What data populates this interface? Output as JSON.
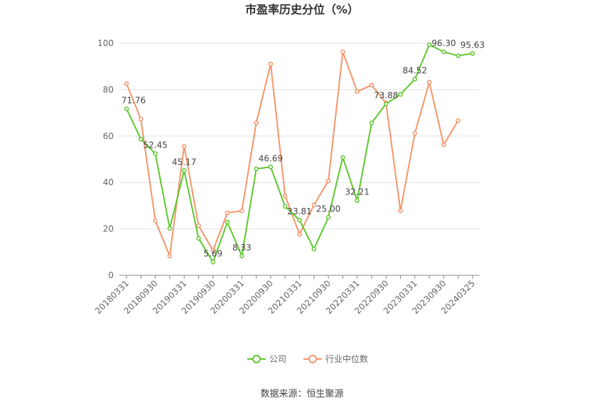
{
  "chart_data": {
    "type": "line",
    "title": "市盈率历史分位（%）",
    "categories": [
      "20180331",
      null,
      "20180930",
      null,
      "20190331",
      null,
      "20190930",
      null,
      "20200331",
      null,
      "20200930",
      null,
      "20210331",
      null,
      "20210930",
      null,
      "20220331",
      null,
      "20220930",
      null,
      "20230331",
      null,
      "20230930",
      null,
      "20240325"
    ],
    "series": [
      {
        "name": "公司",
        "color": "#5ec92e",
        "values": [
          71.76,
          58.7,
          52.45,
          20.2,
          45.17,
          15.9,
          5.69,
          22.9,
          8.33,
          45.9,
          46.69,
          29.7,
          23.81,
          11.3,
          25.0,
          50.8,
          32.21,
          65.7,
          73.88,
          78.0,
          84.52,
          99.4,
          96.3,
          94.6,
          95.63
        ],
        "value_labels": [
          "71.76",
          null,
          "52.45",
          null,
          "45.17",
          null,
          "5.69",
          null,
          "8.33",
          null,
          "46.69",
          null,
          "23.81",
          null,
          "25.00",
          null,
          "32.21",
          null,
          "73.88",
          null,
          "84.52",
          null,
          "96.30",
          null,
          "95.63"
        ]
      },
      {
        "name": "行业中位数",
        "color": "#f5956a",
        "values": [
          82.6,
          67.3,
          23.5,
          8.3,
          55.7,
          21.4,
          10.7,
          26.9,
          27.8,
          65.7,
          91.1,
          34.3,
          17.7,
          30.3,
          40.7,
          96.3,
          79.2,
          82.0,
          74.3,
          27.8,
          61.2,
          83.2,
          56.3,
          66.7,
          null
        ]
      }
    ],
    "ylim": [
      0,
      100
    ],
    "yticks": [
      0,
      20,
      40,
      60,
      80,
      100
    ],
    "grid": true,
    "legend": "bottom",
    "source": "数据来源：恒生聚源"
  }
}
